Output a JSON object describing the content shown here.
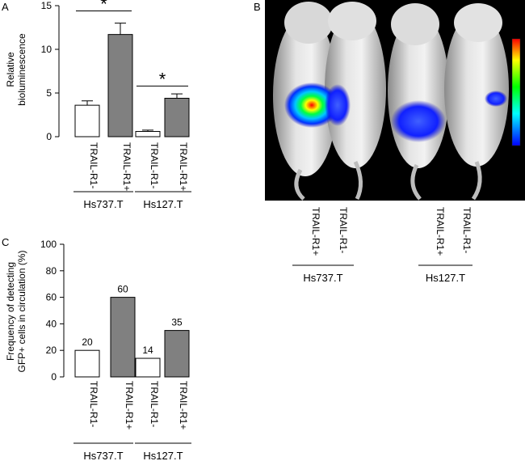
{
  "panels": {
    "a": "A",
    "b": "B",
    "c": "C"
  },
  "chart_data": [
    {
      "id": "A",
      "type": "bar",
      "ylabel_lines": [
        "Relative",
        "bioluminescence"
      ],
      "ylim": [
        0,
        15
      ],
      "yticks": [
        0,
        5,
        10,
        15
      ],
      "categories": [
        "TRAIL-R1-",
        "TRAIL-R1+",
        "TRAIL-R1-",
        "TRAIL-R1+"
      ],
      "values": [
        3.6,
        11.7,
        0.6,
        4.4
      ],
      "errors": [
        0.5,
        1.3,
        0.15,
        0.5
      ],
      "fills": [
        "#ffffff",
        "#808080",
        "#ffffff",
        "#808080"
      ],
      "groups": [
        "Hs737.T",
        "Hs127.T"
      ],
      "significance": [
        {
          "pair": [
            0,
            1
          ],
          "label": "*",
          "y": 14.4
        },
        {
          "pair": [
            2,
            3
          ],
          "label": "*",
          "y": 5.8
        }
      ]
    },
    {
      "id": "C",
      "type": "bar",
      "ylabel_lines": [
        "Frequency of detecting",
        "GFP+ cells in circulation (%)"
      ],
      "ylim": [
        0,
        100
      ],
      "yticks": [
        0,
        20,
        40,
        60,
        80,
        100
      ],
      "categories": [
        "TRAIL-R1-",
        "TRAIL-R1+",
        "TRAIL-R1-",
        "TRAIL-R1+"
      ],
      "values": [
        20,
        60,
        14,
        35
      ],
      "data_labels": [
        "20",
        "60",
        "14",
        "35"
      ],
      "fills": [
        "#ffffff",
        "#808080",
        "#ffffff",
        "#808080"
      ],
      "groups": [
        "Hs737.T",
        "Hs127.T"
      ]
    }
  ],
  "imaging": {
    "lanes": [
      "TRAIL-R1+",
      "TRAIL-R1-",
      "TRAIL-R1+",
      "TRAIL-R1-"
    ],
    "groups": [
      "Hs737.T",
      "Hs127.T"
    ]
  }
}
